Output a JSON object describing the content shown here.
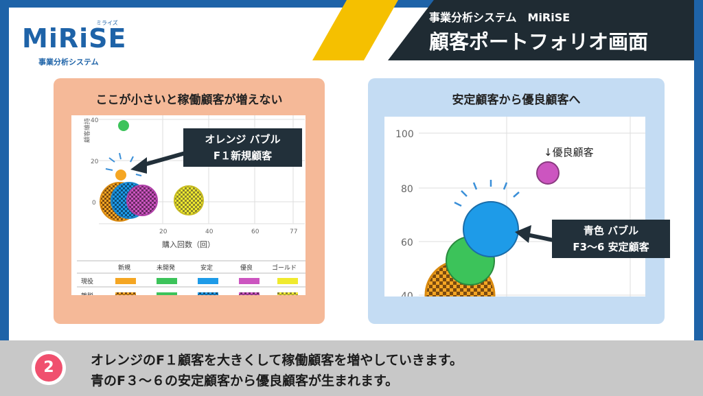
{
  "brand": {
    "name": "MiRiSE",
    "ruby": "ミライズ",
    "subtitle": "事業分析システム"
  },
  "header": {
    "system": "事業分析システム　MiRiSE",
    "title": "顧客ポートフォリオ画面"
  },
  "left_panel": {
    "title": "ここが小さいと稼働顧客が増えない",
    "callout": [
      "オレンジ バブル",
      "F１新規顧客"
    ],
    "y_axis_label": "顧客維持",
    "y_ticks": [
      "40",
      "20",
      "0"
    ],
    "x_ticks": [
      "20",
      "40",
      "60",
      "77"
    ],
    "x_axis_label": "購入回数（回）",
    "legend": {
      "headers": [
        "",
        "新規",
        "未開発",
        "安定",
        "優良",
        "ゴールド"
      ],
      "rows": [
        {
          "label": "現役"
        },
        {
          "label": "離脱"
        }
      ],
      "colors": [
        "#f5a623",
        "#3cc35a",
        "#1e9be8",
        "#cc55c0",
        "#f0ea2e"
      ]
    }
  },
  "right_panel": {
    "title": "安定顧客から優良顧客へ",
    "callout": [
      "青色 バブル",
      "F3〜6 安定顧客"
    ],
    "annotation": "↓優良顧客",
    "y_ticks": [
      "100",
      "80",
      "60",
      "40"
    ]
  },
  "footer": {
    "badge": "2",
    "line1": "オレンジのF１顧客を大きくして稼働顧客を増やしていきます。",
    "line2": "青のF３～６の安定顧客から優良顧客が生まれます。"
  },
  "colors": {
    "brand_blue": "#1e63a8",
    "accent_yellow": "#f5c000",
    "dark": "#1f2b33",
    "panel_orange": "#f5b998",
    "panel_blue": "#c4dcf3",
    "badge_pink": "#f0506e"
  }
}
